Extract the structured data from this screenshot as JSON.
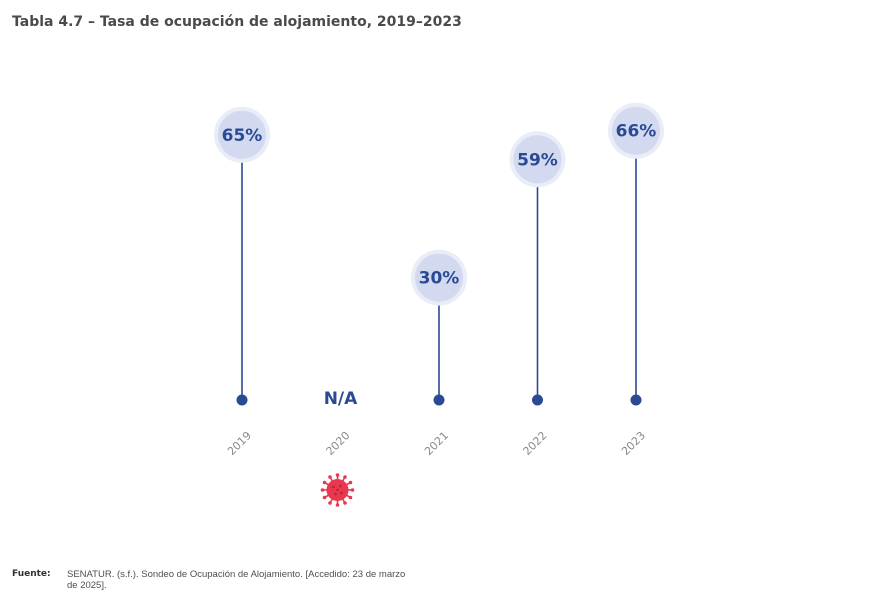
{
  "title": "Tabla 4.7 – Tasa de ocupación de alojamiento, 2019–2023",
  "source": {
    "label": "Fuente:",
    "text": "SENATUR. (s.f.). Sondeo de Ocupación de Alojamiento. [Accedido: 23 de marzo de 2025]."
  },
  "colors": {
    "line": "#2a4a94",
    "bubble_fill": "#d3daf0",
    "bubble_ring": "#e9edf8",
    "value_text": "#2a4a94",
    "axis": "#e3e3e3",
    "tick_text": "#8a8a8a",
    "virus": "#e8384f"
  },
  "icons": {
    "covid": "virus-icon"
  },
  "chart_data": {
    "type": "lollipop",
    "title": "Tabla 4.7 – Tasa de ocupación de alojamiento, 2019–2023",
    "categories": [
      "2019",
      "2020",
      "2021",
      "2022",
      "2023"
    ],
    "values": [
      65,
      null,
      30,
      59,
      66
    ],
    "value_labels": [
      "65%",
      "N/A",
      "30%",
      "59%",
      "66%"
    ],
    "unit": "%",
    "grid": false,
    "legend": "none"
  }
}
